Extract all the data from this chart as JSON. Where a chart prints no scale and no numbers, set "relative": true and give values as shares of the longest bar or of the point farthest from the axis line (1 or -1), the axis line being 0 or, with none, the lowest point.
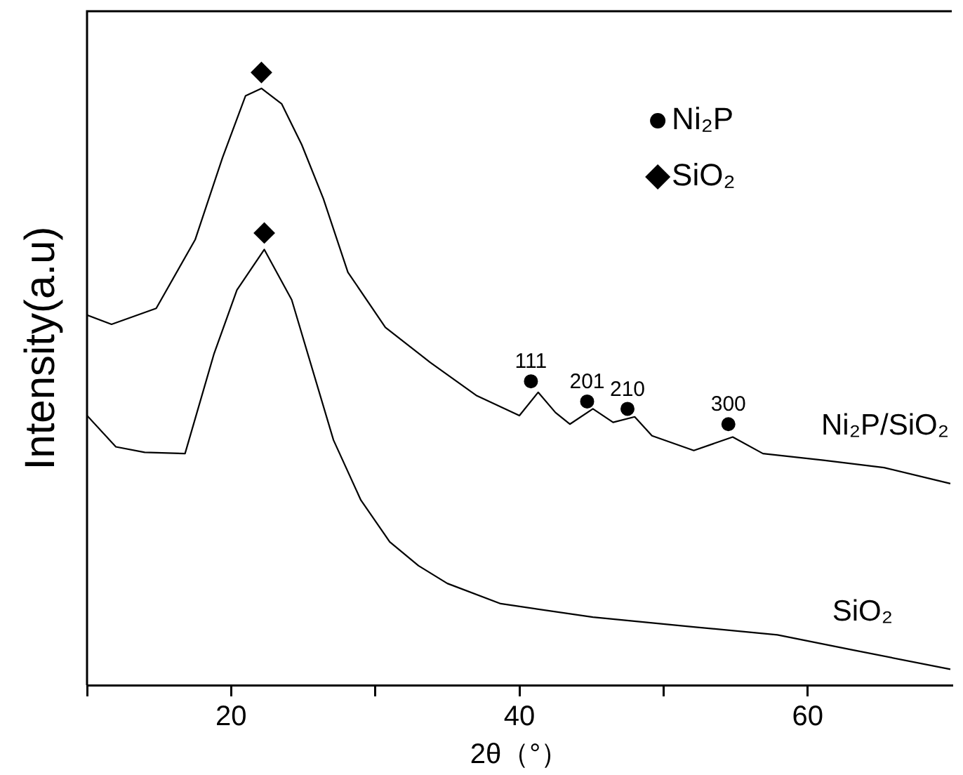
{
  "chart_data": {
    "type": "line",
    "relative": true,
    "xlabel": "2θ（°）",
    "ylabel": "Intensity(a.u)",
    "xlim": [
      10,
      70
    ],
    "xticks": [
      {
        "value": 10,
        "label": null
      },
      20,
      {
        "value": 30,
        "label": null
      },
      40,
      {
        "value": 50,
        "label": null
      },
      60
    ],
    "grid": false,
    "legend": "top right",
    "marker": "none",
    "line_style": "solid",
    "series": [
      {
        "name": "Ni₂P/SiO₂",
        "color": "#000000",
        "x": [
          10,
          11.7,
          14.8,
          17.5,
          19.4,
          21.0,
          22.1,
          23.5,
          24.9,
          26.4,
          28.1,
          30.7,
          33.8,
          37.0,
          40.0,
          41.3,
          42.5,
          43.5,
          45.1,
          46.5,
          48.0,
          49.2,
          52.1,
          54.8,
          56.9,
          61.1,
          65.3,
          69.9
        ],
        "values": [
          0.604,
          0.589,
          0.615,
          0.727,
          0.861,
          0.962,
          0.974,
          0.949,
          0.882,
          0.794,
          0.674,
          0.584,
          0.527,
          0.473,
          0.44,
          0.478,
          0.445,
          0.426,
          0.451,
          0.429,
          0.438,
          0.407,
          0.383,
          0.405,
          0.378,
          0.367,
          0.355,
          0.329
        ]
      },
      {
        "name": "SiO₂",
        "color": "#000000",
        "x": [
          10,
          12,
          14,
          16.8,
          18.8,
          20.4,
          22.3,
          24.2,
          27.1,
          29,
          31,
          33,
          35,
          38.7,
          45.1,
          52.1,
          57.9,
          63,
          69.9
        ],
        "values": [
          0.44,
          0.389,
          0.38,
          0.378,
          0.54,
          0.645,
          0.711,
          0.629,
          0.4,
          0.302,
          0.234,
          0.195,
          0.166,
          0.133,
          0.111,
          0.095,
          0.082,
          0.058,
          0.026
        ]
      },
      {
        "type": "scatter",
        "name": "Ni₂P",
        "color": "#000000",
        "marker": "circle",
        "x": [
          40.8,
          44.7,
          47.5,
          54.5
        ],
        "values": [
          0.496,
          0.463,
          0.451,
          0.426
        ]
      },
      {
        "type": "scatter",
        "name": "SiO₂",
        "color": "#000000",
        "marker": "diamond",
        "x": [
          22.1,
          22.3
        ],
        "values": [
          1.0,
          0.738
        ]
      }
    ],
    "annotations": [
      {
        "text": "111",
        "x": 40.8,
        "y": 0.496
      },
      {
        "text": "201",
        "x": 44.7,
        "y": 0.463
      },
      {
        "text": "210",
        "x": 47.5,
        "y": 0.451
      },
      {
        "text": "300",
        "x": 54.5,
        "y": 0.426
      }
    ]
  }
}
